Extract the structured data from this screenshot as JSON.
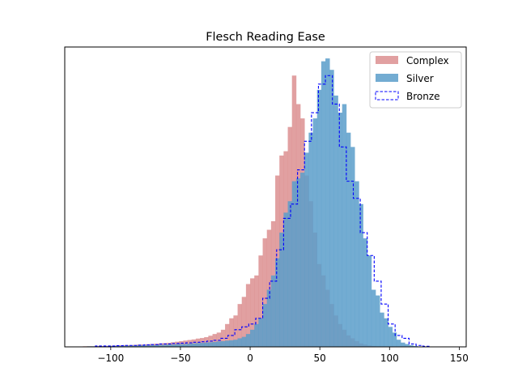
{
  "chart_data": {
    "type": "histogram",
    "title": "Flesch Reading Ease",
    "xlabel": "",
    "ylabel": "",
    "xlim": [
      -133,
      155
    ],
    "ylim": [
      0,
      105
    ],
    "xticks": [
      -100,
      -50,
      0,
      50,
      100,
      150
    ],
    "xtick_labels": [
      "−100",
      "−50",
      "0",
      "50",
      "100",
      "150"
    ],
    "yticks_visible": false,
    "grid": false,
    "legend_position": "upper right",
    "bin_width": 3,
    "series": [
      {
        "name": "Complex",
        "style": "filled",
        "color": "#d9888a",
        "opacity": 0.8,
        "bins": [
          [
            -120,
            0.2
          ],
          [
            -117,
            0.2
          ],
          [
            -114,
            0.2
          ],
          [
            -111,
            0.3
          ],
          [
            -108,
            0.3
          ],
          [
            -105,
            0.3
          ],
          [
            -102,
            0.4
          ],
          [
            -99,
            0.4
          ],
          [
            -96,
            0.5
          ],
          [
            -93,
            0.5
          ],
          [
            -90,
            0.6
          ],
          [
            -87,
            0.6
          ],
          [
            -84,
            0.7
          ],
          [
            -81,
            0.8
          ],
          [
            -78,
            0.8
          ],
          [
            -75,
            0.9
          ],
          [
            -72,
            1.0
          ],
          [
            -69,
            1.1
          ],
          [
            -66,
            1.2
          ],
          [
            -63,
            1.3
          ],
          [
            -60,
            1.4
          ],
          [
            -57,
            1.6
          ],
          [
            -54,
            1.8
          ],
          [
            -51,
            2.0
          ],
          [
            -48,
            2.2
          ],
          [
            -45,
            2.4
          ],
          [
            -42,
            2.6
          ],
          [
            -39,
            2.9
          ],
          [
            -36,
            3.1
          ],
          [
            -33,
            3.4
          ],
          [
            -30,
            3.9
          ],
          [
            -27,
            4.5
          ],
          [
            -24,
            5.0
          ],
          [
            -21,
            6.0
          ],
          [
            -18,
            8.0
          ],
          [
            -15,
            10.0
          ],
          [
            -12,
            11.0
          ],
          [
            -9,
            15.0
          ],
          [
            -6,
            17.5
          ],
          [
            -3,
            22.0
          ],
          [
            0,
            24.0
          ],
          [
            3,
            25.0
          ],
          [
            6,
            32.0
          ],
          [
            9,
            38.0
          ],
          [
            12,
            41.0
          ],
          [
            15,
            44.0
          ],
          [
            18,
            60.0
          ],
          [
            21,
            67.0
          ],
          [
            24,
            68.5
          ],
          [
            27,
            77.0
          ],
          [
            30,
            95.0
          ],
          [
            33,
            85.0
          ],
          [
            36,
            80.0
          ],
          [
            39,
            60.0
          ],
          [
            42,
            51.0
          ],
          [
            45,
            40.0
          ],
          [
            48,
            29.0
          ],
          [
            51,
            25.0
          ],
          [
            54,
            20.0
          ],
          [
            57,
            15.0
          ],
          [
            60,
            11.0
          ],
          [
            63,
            8.0
          ],
          [
            66,
            6.0
          ],
          [
            69,
            4.0
          ],
          [
            72,
            3.0
          ],
          [
            75,
            2.0
          ],
          [
            78,
            1.2
          ],
          [
            81,
            0.8
          ],
          [
            84,
            0.5
          ],
          [
            87,
            0.3
          ],
          [
            90,
            0.2
          ],
          [
            93,
            0.1
          ]
        ]
      },
      {
        "name": "Silver",
        "style": "filled",
        "color": "#5b9dca",
        "opacity": 0.85,
        "bins": [
          [
            -117,
            0.2
          ],
          [
            -114,
            0.2
          ],
          [
            -111,
            0.2
          ],
          [
            -108,
            0.2
          ],
          [
            -105,
            0.2
          ],
          [
            -102,
            0.3
          ],
          [
            -99,
            0.3
          ],
          [
            -96,
            0.3
          ],
          [
            -93,
            0.3
          ],
          [
            -90,
            0.4
          ],
          [
            -87,
            0.4
          ],
          [
            -84,
            0.4
          ],
          [
            -81,
            0.5
          ],
          [
            -78,
            0.5
          ],
          [
            -75,
            0.5
          ],
          [
            -72,
            0.6
          ],
          [
            -69,
            0.6
          ],
          [
            -66,
            0.7
          ],
          [
            -63,
            0.7
          ],
          [
            -60,
            0.8
          ],
          [
            -57,
            0.8
          ],
          [
            -54,
            0.9
          ],
          [
            -51,
            1.0
          ],
          [
            -48,
            1.0
          ],
          [
            -45,
            1.1
          ],
          [
            -42,
            1.2
          ],
          [
            -39,
            1.3
          ],
          [
            -36,
            1.4
          ],
          [
            -33,
            1.5
          ],
          [
            -30,
            1.6
          ],
          [
            -27,
            1.7
          ],
          [
            -24,
            1.9
          ],
          [
            -21,
            2.0
          ],
          [
            -18,
            2.2
          ],
          [
            -15,
            2.3
          ],
          [
            -12,
            2.5
          ],
          [
            -9,
            3.0
          ],
          [
            -6,
            3.5
          ],
          [
            -3,
            4.5
          ],
          [
            0,
            6.0
          ],
          [
            3,
            8.0
          ],
          [
            6,
            10.0
          ],
          [
            9,
            15.0
          ],
          [
            12,
            20.0
          ],
          [
            15,
            25.0
          ],
          [
            18,
            31.0
          ],
          [
            21,
            40.0
          ],
          [
            24,
            47.0
          ],
          [
            27,
            51.0
          ],
          [
            30,
            58.0
          ],
          [
            33,
            59.0
          ],
          [
            36,
            61.0
          ],
          [
            39,
            68.0
          ],
          [
            42,
            75.0
          ],
          [
            45,
            80.0
          ],
          [
            48,
            90.0
          ],
          [
            51,
            100.0
          ],
          [
            54,
            101.0
          ],
          [
            57,
            97.0
          ],
          [
            60,
            88.0
          ],
          [
            63,
            82.0
          ],
          [
            66,
            85.0
          ],
          [
            69,
            75.0
          ],
          [
            72,
            70.0
          ],
          [
            75,
            58.0
          ],
          [
            78,
            50.0
          ],
          [
            81,
            38.0
          ],
          [
            84,
            32.0
          ],
          [
            87,
            20.0
          ],
          [
            90,
            18.0
          ],
          [
            93,
            12.0
          ],
          [
            96,
            10.0
          ],
          [
            99,
            7.0
          ],
          [
            102,
            5.0
          ],
          [
            105,
            2.5
          ],
          [
            108,
            1.5
          ],
          [
            111,
            1.0
          ],
          [
            114,
            0.6
          ],
          [
            117,
            0.3
          ]
        ]
      },
      {
        "name": "Bronze",
        "style": "step",
        "linestyle": "dashed",
        "color": "#0000ff",
        "bins": [
          [
            -111,
            0.3
          ],
          [
            -106,
            0.3
          ],
          [
            -101,
            0.3
          ],
          [
            -96,
            0.4
          ],
          [
            -91,
            0.5
          ],
          [
            -86,
            0.5
          ],
          [
            -81,
            0.6
          ],
          [
            -76,
            0.7
          ],
          [
            -71,
            0.8
          ],
          [
            -66,
            1.0
          ],
          [
            -61,
            1.0
          ],
          [
            -56,
            1.2
          ],
          [
            -51,
            1.3
          ],
          [
            -46,
            1.4
          ],
          [
            -41,
            1.6
          ],
          [
            -36,
            1.8
          ],
          [
            -31,
            2.0
          ],
          [
            -26,
            2.3
          ],
          [
            -21,
            3.0
          ],
          [
            -16,
            4.0
          ],
          [
            -11,
            6.0
          ],
          [
            -6,
            7.0
          ],
          [
            -1,
            8.0
          ],
          [
            4,
            10.0
          ],
          [
            9,
            17.0
          ],
          [
            14,
            23.0
          ],
          [
            19,
            34.0
          ],
          [
            24,
            45.0
          ],
          [
            29,
            50.0
          ],
          [
            34,
            62.0
          ],
          [
            39,
            72.0
          ],
          [
            44,
            82.0
          ],
          [
            49,
            92.0
          ],
          [
            54,
            95.0
          ],
          [
            59,
            85.0
          ],
          [
            64,
            70.0
          ],
          [
            69,
            58.0
          ],
          [
            74,
            52.0
          ],
          [
            79,
            40.0
          ],
          [
            84,
            32.0
          ],
          [
            89,
            23.0
          ],
          [
            94,
            15.0
          ],
          [
            99,
            8.0
          ],
          [
            104,
            4.0
          ],
          [
            109,
            3.0
          ],
          [
            114,
            1.0
          ],
          [
            119,
            0.5
          ],
          [
            124,
            0.2
          ]
        ]
      }
    ]
  }
}
